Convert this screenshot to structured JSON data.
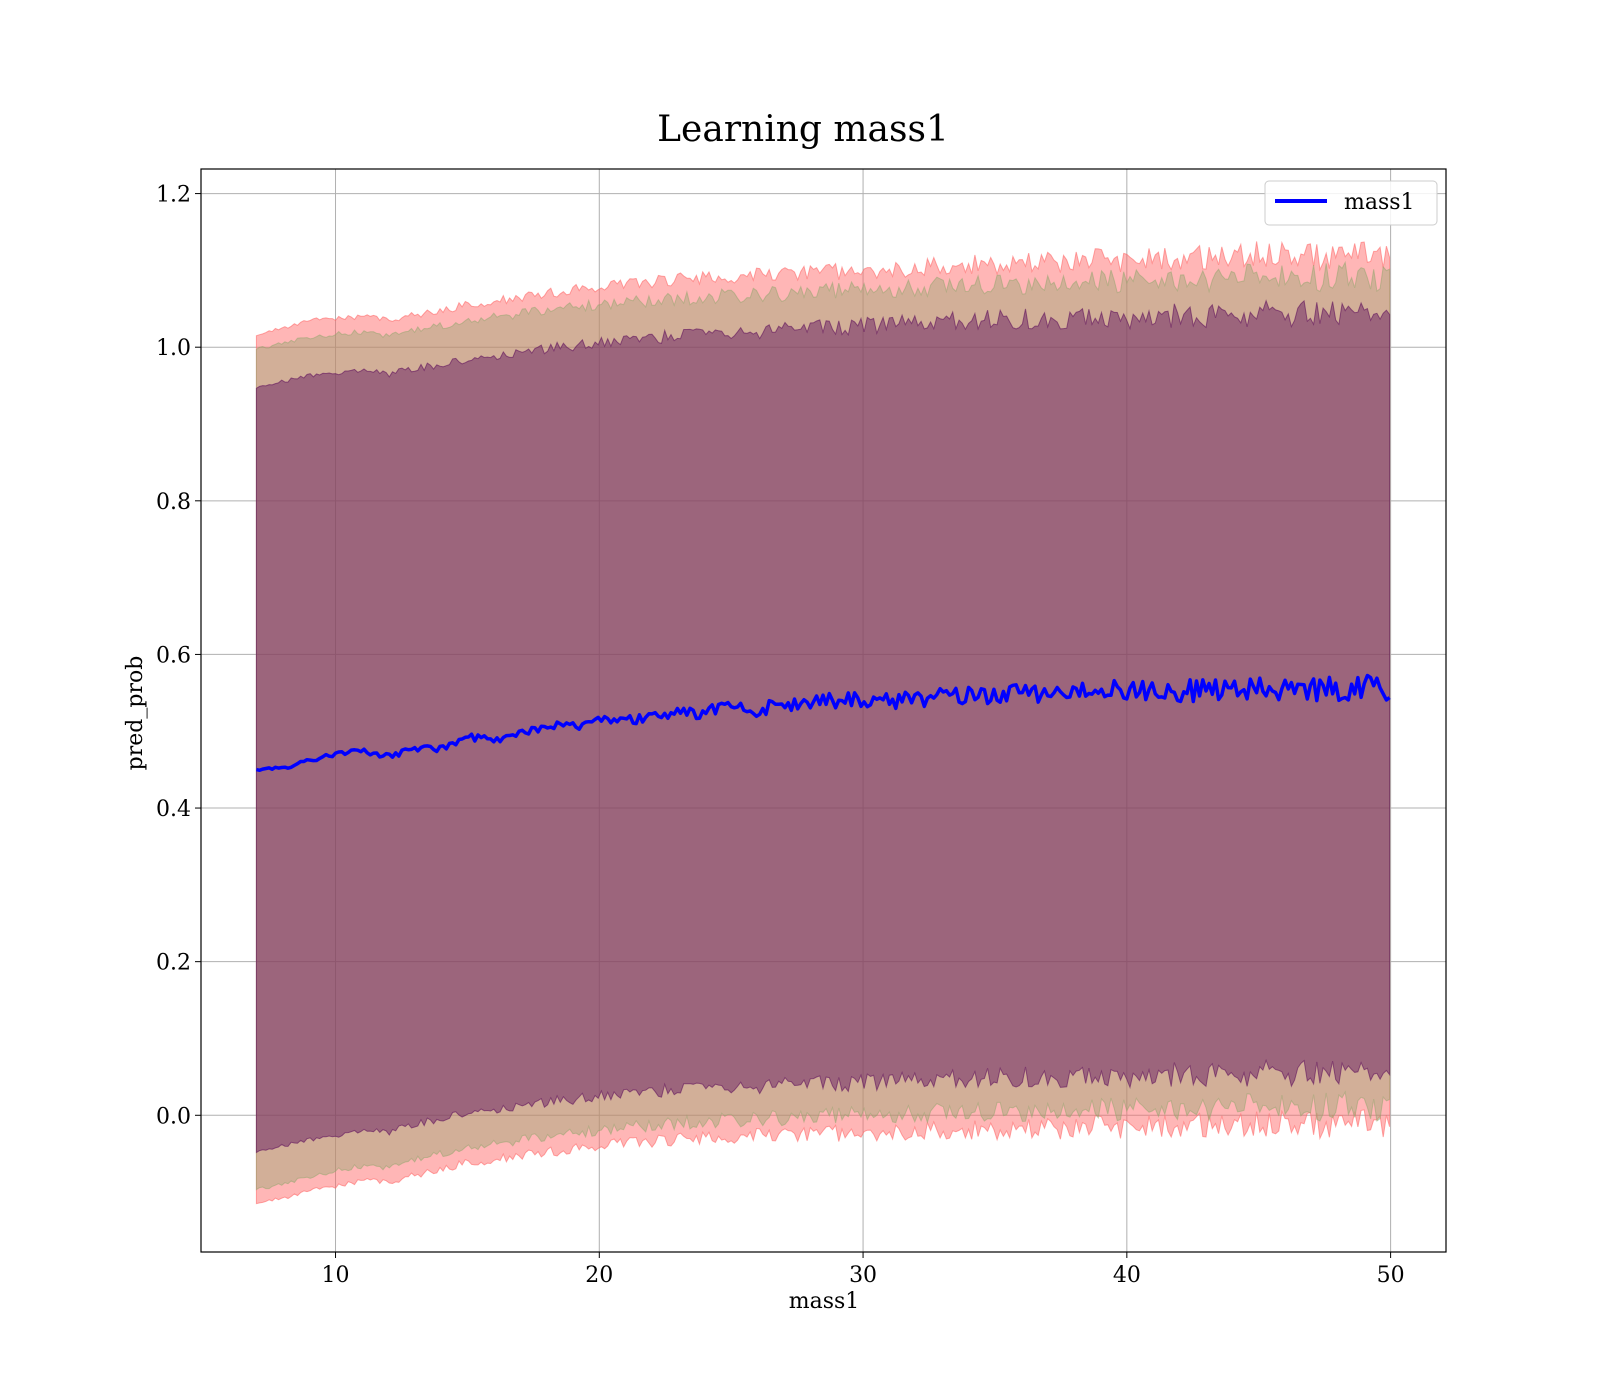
{
  "chart_data": {
    "type": "line",
    "title": "Learning mass1",
    "xlabel": "mass1",
    "ylabel": "pred_prob",
    "xlim": [
      4.9,
      52.1
    ],
    "ylim": [
      -0.178,
      1.232
    ],
    "x_ticks": [
      10,
      20,
      30,
      40,
      50
    ],
    "y_ticks": [
      0.0,
      0.2,
      0.4,
      0.6,
      0.8,
      1.0,
      1.2
    ],
    "x_tick_labels": [
      "10",
      "20",
      "30",
      "40",
      "50"
    ],
    "y_tick_labels": [
      "0.0",
      "0.2",
      "0.4",
      "0.6",
      "0.8",
      "1.0",
      "1.2"
    ],
    "grid": true,
    "legend_position": "top-right",
    "series": [
      {
        "name": "mass1",
        "color": "#0000ff",
        "x": [
          7,
          8,
          9,
          10,
          11,
          12,
          13,
          14,
          15,
          16,
          17,
          18,
          19,
          20,
          21,
          22,
          23,
          24,
          25,
          26,
          27,
          28,
          29,
          30,
          31,
          32,
          33,
          34,
          35,
          36,
          37,
          38,
          39,
          40,
          41,
          42,
          43,
          44,
          45,
          46,
          47,
          48,
          49,
          50
        ],
        "y": [
          0.45,
          0.452,
          0.462,
          0.47,
          0.474,
          0.468,
          0.476,
          0.478,
          0.492,
          0.488,
          0.5,
          0.505,
          0.508,
          0.512,
          0.515,
          0.52,
          0.522,
          0.525,
          0.53,
          0.528,
          0.535,
          0.538,
          0.54,
          0.54,
          0.538,
          0.542,
          0.545,
          0.546,
          0.548,
          0.55,
          0.55,
          0.552,
          0.553,
          0.552,
          0.555,
          0.553,
          0.554,
          0.555,
          0.556,
          0.556,
          0.555,
          0.556,
          0.555,
          0.556
        ],
        "bands": [
          {
            "color": "#ff6666",
            "opacity": 0.48,
            "upper": [
              1.015,
              1.025,
              1.035,
              1.038,
              1.04,
              1.035,
              1.042,
              1.048,
              1.055,
              1.06,
              1.065,
              1.07,
              1.075,
              1.078,
              1.082,
              1.085,
              1.088,
              1.09,
              1.092,
              1.093,
              1.095,
              1.097,
              1.098,
              1.099,
              1.1,
              1.102,
              1.105,
              1.107,
              1.108,
              1.11,
              1.11,
              1.112,
              1.113,
              1.112,
              1.115,
              1.114,
              1.116,
              1.118,
              1.12,
              1.118,
              1.118,
              1.119,
              1.118,
              1.12
            ],
            "lower": [
              -0.115,
              -0.108,
              -0.098,
              -0.092,
              -0.085,
              -0.088,
              -0.078,
              -0.07,
              -0.062,
              -0.058,
              -0.052,
              -0.048,
              -0.044,
              -0.04,
              -0.036,
              -0.034,
              -0.032,
              -0.03,
              -0.028,
              -0.027,
              -0.026,
              -0.025,
              -0.024,
              -0.024,
              -0.023,
              -0.022,
              -0.021,
              -0.02,
              -0.019,
              -0.018,
              -0.018,
              -0.017,
              -0.016,
              -0.016,
              -0.015,
              -0.015,
              -0.014,
              -0.014,
              -0.013,
              -0.013,
              -0.013,
              -0.012,
              -0.012,
              -0.012
            ]
          },
          {
            "color": "#8fa56b",
            "opacity": 0.4,
            "upper": [
              0.997,
              1.005,
              1.013,
              1.017,
              1.02,
              1.015,
              1.022,
              1.028,
              1.034,
              1.039,
              1.044,
              1.048,
              1.052,
              1.055,
              1.058,
              1.061,
              1.063,
              1.065,
              1.067,
              1.068,
              1.07,
              1.072,
              1.073,
              1.074,
              1.075,
              1.077,
              1.079,
              1.081,
              1.082,
              1.083,
              1.084,
              1.085,
              1.086,
              1.086,
              1.088,
              1.088,
              1.089,
              1.09,
              1.091,
              1.091,
              1.091,
              1.092,
              1.092,
              1.093
            ],
            "lower": [
              -0.097,
              -0.09,
              -0.08,
              -0.072,
              -0.066,
              -0.068,
              -0.058,
              -0.05,
              -0.042,
              -0.038,
              -0.032,
              -0.028,
              -0.024,
              -0.02,
              -0.016,
              -0.013,
              -0.01,
              -0.008,
              -0.006,
              -0.005,
              -0.003,
              -0.002,
              -0.001,
              0.0,
              0.001,
              0.002,
              0.003,
              0.004,
              0.005,
              0.006,
              0.006,
              0.007,
              0.008,
              0.008,
              0.009,
              0.009,
              0.01,
              0.01,
              0.011,
              0.011,
              0.011,
              0.012,
              0.012,
              0.012
            ]
          },
          {
            "color": "#5a0a5a",
            "opacity": 0.45,
            "upper": [
              0.948,
              0.955,
              0.963,
              0.967,
              0.97,
              0.965,
              0.972,
              0.978,
              0.984,
              0.989,
              0.994,
              0.998,
              1.002,
              1.006,
              1.009,
              1.012,
              1.015,
              1.017,
              1.019,
              1.021,
              1.023,
              1.025,
              1.027,
              1.028,
              1.03,
              1.031,
              1.033,
              1.034,
              1.035,
              1.036,
              1.037,
              1.038,
              1.039,
              1.039,
              1.04,
              1.04,
              1.041,
              1.042,
              1.043,
              1.043,
              1.043,
              1.044,
              1.044,
              1.045
            ],
            "lower": [
              -0.047,
              -0.04,
              -0.032,
              -0.026,
              -0.02,
              -0.022,
              -0.012,
              -0.004,
              0.004,
              0.008,
              0.013,
              0.017,
              0.021,
              0.025,
              0.028,
              0.031,
              0.033,
              0.035,
              0.037,
              0.038,
              0.04,
              0.041,
              0.042,
              0.043,
              0.044,
              0.045,
              0.046,
              0.047,
              0.048,
              0.049,
              0.05,
              0.05,
              0.051,
              0.051,
              0.052,
              0.052,
              0.053,
              0.053,
              0.054,
              0.054,
              0.054,
              0.055,
              0.055,
              0.055
            ]
          }
        ]
      }
    ]
  }
}
